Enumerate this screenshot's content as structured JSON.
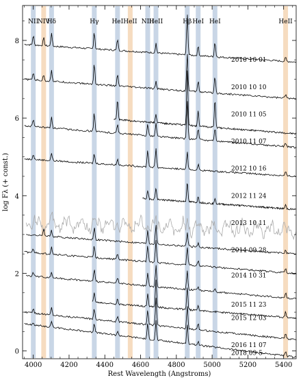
{
  "chart_data": {
    "type": "line",
    "xlabel": "Rest Wavelength (Angstroms)",
    "ylabel": "log Fλ (+ const.)",
    "xlim": [
      3940,
      5470
    ],
    "ylim": [
      -0.2,
      8.9
    ],
    "x_ticks": [
      4000,
      4200,
      4400,
      4600,
      4800,
      5000,
      5200,
      5400
    ],
    "y_ticks": [
      0,
      2,
      4,
      6,
      8
    ],
    "line_markers": [
      {
        "label": "NII",
        "x": 4000,
        "color": "#c9d6e6"
      },
      {
        "label": "NIV",
        "x": 4058,
        "color": "#f6dcc0"
      },
      {
        "label": "Hδ",
        "x": 4102,
        "color": "#c9d6e6"
      },
      {
        "label": "Hγ",
        "x": 4341,
        "color": "#c9d6e6"
      },
      {
        "label": "HeI",
        "x": 4471,
        "color": "#c9d6e6"
      },
      {
        "label": "HeII",
        "x": 4542,
        "color": "#f6dcc0"
      },
      {
        "label": "NIII",
        "x": 4640,
        "color": "#c9d6e6"
      },
      {
        "label": "HeII",
        "x": 4686,
        "color": "#c9d6e6"
      },
      {
        "label": "Hβ",
        "x": 4861,
        "color": "#c9d6e6"
      },
      {
        "label": "HeI",
        "x": 4922,
        "color": "#c9d6e6"
      },
      {
        "label": "HeI",
        "x": 5016,
        "color": "#c9d6e6"
      },
      {
        "label": "HeII",
        "x": 5411,
        "color": "#f6dcc0"
      }
    ],
    "series": [
      {
        "label": "2010 10 01",
        "x_range": [
          3950,
          5470
        ],
        "offset": 7.9,
        "slope": -0.45,
        "color": "#000000",
        "label_y": 7.5,
        "lines": [
          [
            4000,
            0.25
          ],
          [
            4058,
            0.2
          ],
          [
            4102,
            0.35
          ],
          [
            4341,
            0.45
          ],
          [
            4471,
            0.3
          ],
          [
            4686,
            0.25
          ],
          [
            4861,
            1.1
          ],
          [
            4922,
            0.25
          ],
          [
            5016,
            0.4
          ],
          [
            5411,
            0.1
          ]
        ]
      },
      {
        "label": "2010 10 10",
        "x_range": [
          3950,
          5470
        ],
        "offset": 7.0,
        "slope": -0.5,
        "color": "#000000",
        "label_y": 6.8,
        "lines": [
          [
            4000,
            0.2
          ],
          [
            4058,
            0.15
          ],
          [
            4102,
            0.3
          ],
          [
            4341,
            0.55
          ],
          [
            4471,
            0.3
          ],
          [
            4686,
            0.2
          ],
          [
            4861,
            1.0
          ],
          [
            4922,
            0.3
          ],
          [
            5016,
            0.45
          ],
          [
            5411,
            0.1
          ]
        ]
      },
      {
        "label": "2010 11 05",
        "x_range": [
          4450,
          5470
        ],
        "offset": 6.15,
        "slope": -0.55,
        "color": "#000000",
        "label_y": 6.1,
        "lines": [
          [
            4471,
            0.5
          ],
          [
            4686,
            0.2
          ],
          [
            4861,
            1.4
          ],
          [
            4922,
            0.4
          ],
          [
            5016,
            0.7
          ]
        ]
      },
      {
        "label": "2010 11 07",
        "x_range": [
          3950,
          5470
        ],
        "offset": 5.8,
        "slope": -0.55,
        "color": "#000000",
        "label_y": 5.4,
        "lines": [
          [
            4000,
            0.2
          ],
          [
            4102,
            0.3
          ],
          [
            4341,
            0.5
          ],
          [
            4471,
            0.25
          ],
          [
            4640,
            0.3
          ],
          [
            4686,
            0.35
          ],
          [
            4861,
            1.0
          ],
          [
            4922,
            0.3
          ],
          [
            5016,
            0.35
          ],
          [
            5411,
            0.1
          ]
        ]
      },
      {
        "label": "2012 10 16",
        "x_range": [
          3950,
          5470
        ],
        "offset": 4.95,
        "slope": -0.45,
        "color": "#000000",
        "label_y": 4.7,
        "lines": [
          [
            4000,
            0.15
          ],
          [
            4102,
            0.2
          ],
          [
            4341,
            0.25
          ],
          [
            4471,
            0.15
          ],
          [
            4640,
            0.45
          ],
          [
            4686,
            0.5
          ],
          [
            4861,
            0.45
          ],
          [
            4922,
            0.15
          ],
          [
            5411,
            0.1
          ]
        ]
      },
      {
        "label": "2012 11 24",
        "x_range": [
          4610,
          5470
        ],
        "offset": 4.15,
        "slope": -0.5,
        "color": "#000000",
        "label_y": 4.0,
        "lines": [
          [
            4640,
            0.2
          ],
          [
            4686,
            0.3
          ],
          [
            4861,
            0.5
          ],
          [
            4922,
            0.15
          ],
          [
            5016,
            0.15
          ],
          [
            5411,
            0.1
          ]
        ]
      },
      {
        "label": "2013 10 11",
        "x_range": [
          3960,
          5470
        ],
        "offset": 3.3,
        "slope": -0.2,
        "color": "#aaaaaa",
        "label_y": 3.3,
        "lines": [
          [
            4686,
            0.35
          ],
          [
            4861,
            0.3
          ]
        ]
      },
      {
        "label": "2014 09 28",
        "x_range": [
          3960,
          5470
        ],
        "offset": 3.0,
        "slope": -0.5,
        "color": "#000000",
        "label_y": 2.6,
        "lines": [
          [
            4058,
            0.2
          ],
          [
            4102,
            0.15
          ],
          [
            4341,
            0.3
          ],
          [
            4640,
            0.35
          ],
          [
            4686,
            0.5
          ],
          [
            4861,
            0.35
          ],
          [
            4922,
            0.1
          ],
          [
            5411,
            0.1
          ]
        ]
      },
      {
        "label": "2014 10 31",
        "x_range": [
          3950,
          5470
        ],
        "offset": 2.55,
        "slope": -0.55,
        "color": "#000000",
        "label_y": 1.95,
        "lines": [
          [
            4000,
            0.1
          ],
          [
            4102,
            0.2
          ],
          [
            4341,
            0.3
          ],
          [
            4471,
            0.15
          ],
          [
            4640,
            0.45
          ],
          [
            4686,
            0.6
          ],
          [
            4861,
            0.45
          ],
          [
            4922,
            0.15
          ],
          [
            5411,
            0.1
          ]
        ]
      },
      {
        "label": "2015 11 23",
        "x_range": [
          3960,
          5470
        ],
        "offset": 1.95,
        "slope": -0.6,
        "color": "#000000",
        "label_y": 1.2,
        "lines": [
          [
            4000,
            0.1
          ],
          [
            4102,
            0.15
          ],
          [
            4341,
            0.3
          ],
          [
            4471,
            0.15
          ],
          [
            4640,
            0.35
          ],
          [
            4686,
            0.55
          ],
          [
            4861,
            0.5
          ],
          [
            4922,
            0.1
          ],
          [
            5016,
            0.1
          ],
          [
            5411,
            0.15
          ]
        ]
      },
      {
        "label": "2015 12 03",
        "x_range": [
          4330,
          5470
        ],
        "offset": 1.4,
        "slope": -0.55,
        "color": "#000000",
        "label_y": 0.85,
        "lines": [
          [
            4341,
            0.25
          ],
          [
            4471,
            0.15
          ],
          [
            4640,
            0.35
          ],
          [
            4686,
            0.7
          ],
          [
            4861,
            0.55
          ],
          [
            4922,
            0.15
          ],
          [
            5411,
            0.15
          ]
        ]
      },
      {
        "label": "2016 11 07",
        "x_range": [
          3950,
          5470
        ],
        "offset": 1.0,
        "slope": -0.7,
        "color": "#000000",
        "label_y": 0.15,
        "lines": [
          [
            4000,
            0.1
          ],
          [
            4102,
            0.2
          ],
          [
            4341,
            0.3
          ],
          [
            4471,
            0.15
          ],
          [
            4640,
            0.4
          ],
          [
            4686,
            0.7
          ],
          [
            4861,
            0.6
          ],
          [
            4922,
            0.15
          ],
          [
            5411,
            0.15
          ]
        ]
      },
      {
        "label": "2018 09 5",
        "x_range": [
          3950,
          5470
        ],
        "offset": 0.7,
        "slope": -0.85,
        "color": "#000000",
        "label_y": -0.05,
        "lines": [
          [
            4000,
            0.05
          ],
          [
            4102,
            0.15
          ],
          [
            4341,
            0.25
          ],
          [
            4471,
            0.1
          ],
          [
            4640,
            0.4
          ],
          [
            4686,
            0.5
          ],
          [
            4861,
            0.5
          ],
          [
            4922,
            0.1
          ],
          [
            5411,
            0.1
          ]
        ]
      }
    ]
  }
}
